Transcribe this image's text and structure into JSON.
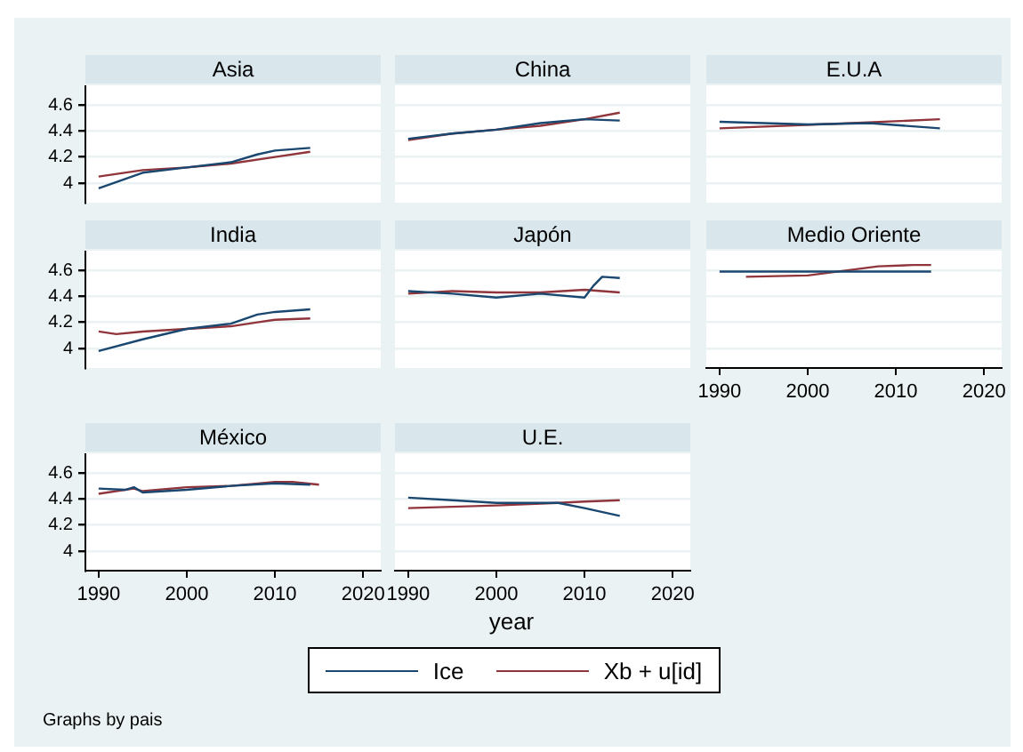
{
  "chart_data": [
    {
      "type": "line",
      "title": "Asia",
      "legend": "bottom",
      "xlim": [
        1988.5,
        2022
      ],
      "xticks": [
        1990,
        2000,
        2010,
        2020
      ],
      "ylim": [
        3.85,
        4.75
      ],
      "yticks": [
        4,
        4.2,
        4.4,
        4.6
      ],
      "grid": "y",
      "tick_labels": "y",
      "series": [
        {
          "name": "Ice",
          "color": "#1a476f",
          "x": [
            1990,
            1995,
            2000,
            2005,
            2008,
            2010,
            2014
          ],
          "values": [
            3.96,
            4.08,
            4.12,
            4.16,
            4.22,
            4.25,
            4.27
          ]
        },
        {
          "name": "Xb + u[id]",
          "color": "#90353b",
          "x": [
            1990,
            1995,
            2000,
            2005,
            2010,
            2014
          ],
          "values": [
            4.05,
            4.1,
            4.12,
            4.15,
            4.2,
            4.24
          ]
        }
      ]
    },
    {
      "type": "line",
      "title": "China",
      "xlim": [
        1988.5,
        2022
      ],
      "xticks": [
        1990,
        2000,
        2010,
        2020
      ],
      "ylim": [
        3.85,
        4.75
      ],
      "yticks": [
        4,
        4.2,
        4.4,
        4.6
      ],
      "grid": "y",
      "tick_labels": false,
      "series": [
        {
          "color": "#1a476f",
          "x": [
            1990,
            1995,
            2000,
            2005,
            2010,
            2014
          ],
          "values": [
            4.34,
            4.38,
            4.41,
            4.46,
            4.49,
            4.48
          ]
        },
        {
          "color": "#90353b",
          "x": [
            1990,
            1995,
            2000,
            2005,
            2010,
            2014
          ],
          "values": [
            4.33,
            4.38,
            4.41,
            4.44,
            4.49,
            4.54
          ]
        }
      ]
    },
    {
      "type": "line",
      "title": "E.U.A",
      "xlim": [
        1988.5,
        2022
      ],
      "xticks": [
        1990,
        2000,
        2010,
        2020
      ],
      "ylim": [
        3.85,
        4.75
      ],
      "yticks": [
        4,
        4.2,
        4.4,
        4.6
      ],
      "grid": "y",
      "tick_labels": false,
      "series": [
        {
          "color": "#1a476f",
          "x": [
            1990,
            2000,
            2007,
            2015
          ],
          "values": [
            4.47,
            4.45,
            4.46,
            4.42
          ]
        },
        {
          "color": "#90353b",
          "x": [
            1990,
            2005,
            2015
          ],
          "values": [
            4.42,
            4.46,
            4.49
          ]
        }
      ]
    },
    {
      "type": "line",
      "title": "India",
      "xlim": [
        1988.5,
        2022
      ],
      "xticks": [
        1990,
        2000,
        2010,
        2020
      ],
      "ylim": [
        3.85,
        4.75
      ],
      "yticks": [
        4,
        4.2,
        4.4,
        4.6
      ],
      "grid": "y",
      "tick_labels": "y",
      "series": [
        {
          "color": "#1a476f",
          "x": [
            1990,
            1995,
            2000,
            2005,
            2008,
            2010,
            2014
          ],
          "values": [
            3.98,
            4.07,
            4.15,
            4.19,
            4.26,
            4.28,
            4.3
          ]
        },
        {
          "color": "#90353b",
          "x": [
            1990,
            1992,
            1995,
            2000,
            2005,
            2008,
            2010,
            2014
          ],
          "values": [
            4.13,
            4.11,
            4.13,
            4.15,
            4.17,
            4.2,
            4.22,
            4.23
          ]
        }
      ]
    },
    {
      "type": "line",
      "title": "Japón",
      "xlim": [
        1988.5,
        2022
      ],
      "xticks": [
        1990,
        2000,
        2010,
        2020
      ],
      "ylim": [
        3.85,
        4.75
      ],
      "yticks": [
        4,
        4.2,
        4.4,
        4.6
      ],
      "grid": "y",
      "tick_labels": false,
      "series": [
        {
          "color": "#1a476f",
          "x": [
            1990,
            1995,
            2000,
            2005,
            2010,
            2011,
            2012,
            2014
          ],
          "values": [
            4.44,
            4.42,
            4.39,
            4.42,
            4.39,
            4.48,
            4.55,
            4.54
          ]
        },
        {
          "color": "#90353b",
          "x": [
            1990,
            1995,
            2000,
            2005,
            2010,
            2014
          ],
          "values": [
            4.42,
            4.44,
            4.43,
            4.43,
            4.45,
            4.43
          ]
        }
      ]
    },
    {
      "type": "line",
      "title": "Medio Oriente",
      "xlim": [
        1988.5,
        2022
      ],
      "xticks": [
        1990,
        2000,
        2010,
        2020
      ],
      "ylim": [
        3.85,
        4.75
      ],
      "yticks": [
        4,
        4.2,
        4.4,
        4.6
      ],
      "grid": "y",
      "tick_labels": "x",
      "series": [
        {
          "color": "#1a476f",
          "x": [
            1990,
            2005,
            2014
          ],
          "values": [
            4.59,
            4.59,
            4.59
          ]
        },
        {
          "color": "#90353b",
          "x": [
            1993,
            2000,
            2008,
            2012,
            2014
          ],
          "values": [
            4.55,
            4.56,
            4.63,
            4.64,
            4.64
          ]
        }
      ]
    },
    {
      "type": "line",
      "title": "México",
      "xlim": [
        1988.5,
        2022
      ],
      "xticks": [
        1990,
        2000,
        2010,
        2020
      ],
      "ylim": [
        3.85,
        4.75
      ],
      "yticks": [
        4,
        4.2,
        4.4,
        4.6
      ],
      "grid": "y",
      "series": [
        {
          "color": "#1a476f",
          "x": [
            1990,
            1993,
            1994,
            1995,
            2000,
            2005,
            2010,
            2014
          ],
          "values": [
            4.48,
            4.47,
            4.49,
            4.45,
            4.47,
            4.5,
            4.52,
            4.51
          ]
        },
        {
          "color": "#90353b",
          "x": [
            1990,
            1994,
            1995,
            2000,
            2005,
            2010,
            2012,
            2015
          ],
          "values": [
            4.44,
            4.48,
            4.46,
            4.49,
            4.5,
            4.53,
            4.53,
            4.51
          ]
        }
      ]
    },
    {
      "type": "line",
      "title": "U.E.",
      "xlabel": "year",
      "annotations": [
        "Graphs by pais"
      ],
      "xlim": [
        1988.5,
        2022
      ],
      "xticks": [
        1990,
        2000,
        2010,
        2020
      ],
      "ylim": [
        3.85,
        4.75
      ],
      "yticks": [
        4,
        4.2,
        4.4,
        4.6
      ],
      "grid": "y",
      "tick_labels": "x",
      "series": [
        {
          "color": "#1a476f",
          "x": [
            1990,
            1995,
            2000,
            2007,
            2010,
            2014
          ],
          "values": [
            4.41,
            4.39,
            4.37,
            4.37,
            4.33,
            4.27
          ]
        },
        {
          "color": "#90353b",
          "x": [
            1990,
            1995,
            2000,
            2007,
            2010,
            2014
          ],
          "values": [
            4.33,
            4.34,
            4.35,
            4.37,
            4.38,
            4.39
          ]
        }
      ]
    }
  ]
}
